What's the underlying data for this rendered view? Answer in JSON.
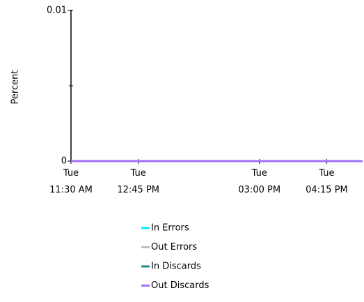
{
  "chart_data": {
    "type": "line",
    "y_label": "Percent",
    "x": [
      690,
      1015
    ],
    "xlim": [
      690,
      1015
    ],
    "xticks": [
      {
        "value": 690,
        "label": "Tue\n11:30 AM"
      },
      {
        "value": 765,
        "label": "Tue\n12:45 PM"
      },
      {
        "value": 900,
        "label": "Tue\n03:00 PM"
      },
      {
        "value": 975,
        "label": "Tue\n04:15 PM"
      }
    ],
    "ylim": [
      0,
      0.01
    ],
    "yticks": [
      0,
      0.01
    ],
    "minor_yticks": [
      0.005
    ],
    "legend": "bottom",
    "series": [
      {
        "name": "In Errors",
        "color": "#00e8ff",
        "values": [
          0,
          0
        ]
      },
      {
        "name": "Out Errors",
        "color": "#c0c0c0",
        "values": [
          0,
          0
        ]
      },
      {
        "name": "In Discards",
        "color": "#2a8a8a",
        "values": [
          0,
          0
        ]
      },
      {
        "name": "Out Discards",
        "color": "#a070ff",
        "values": [
          0,
          0
        ]
      }
    ]
  }
}
